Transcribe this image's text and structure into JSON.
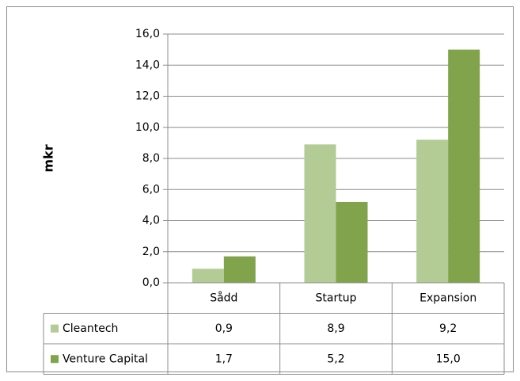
{
  "chart_data": {
    "type": "bar",
    "y_label": "mkr",
    "categories": [
      "Sådd",
      "Startup",
      "Expansion"
    ],
    "series": [
      {
        "name": "Cleantech",
        "color": "#b3cb94",
        "values": [
          0.9,
          8.9,
          9.2
        ],
        "value_labels": [
          "0,9",
          "8,9",
          "9,2"
        ]
      },
      {
        "name": "Venture Capital",
        "color": "#80a34b",
        "values": [
          1.7,
          5.2,
          15.0
        ],
        "value_labels": [
          "1,7",
          "5,2",
          "15,0"
        ]
      }
    ],
    "ylim": [
      0,
      16
    ],
    "yticks": [
      {
        "value": 0,
        "label": "0,0"
      },
      {
        "value": 2,
        "label": "2,0"
      },
      {
        "value": 4,
        "label": "4,0"
      },
      {
        "value": 6,
        "label": "6,0"
      },
      {
        "value": 8,
        "label": "8,0"
      },
      {
        "value": 10,
        "label": "10,0"
      },
      {
        "value": 12,
        "label": "12,0"
      },
      {
        "value": 14,
        "label": "14,0"
      },
      {
        "value": 16,
        "label": "16,0"
      }
    ],
    "grid": true,
    "data_table": true
  }
}
